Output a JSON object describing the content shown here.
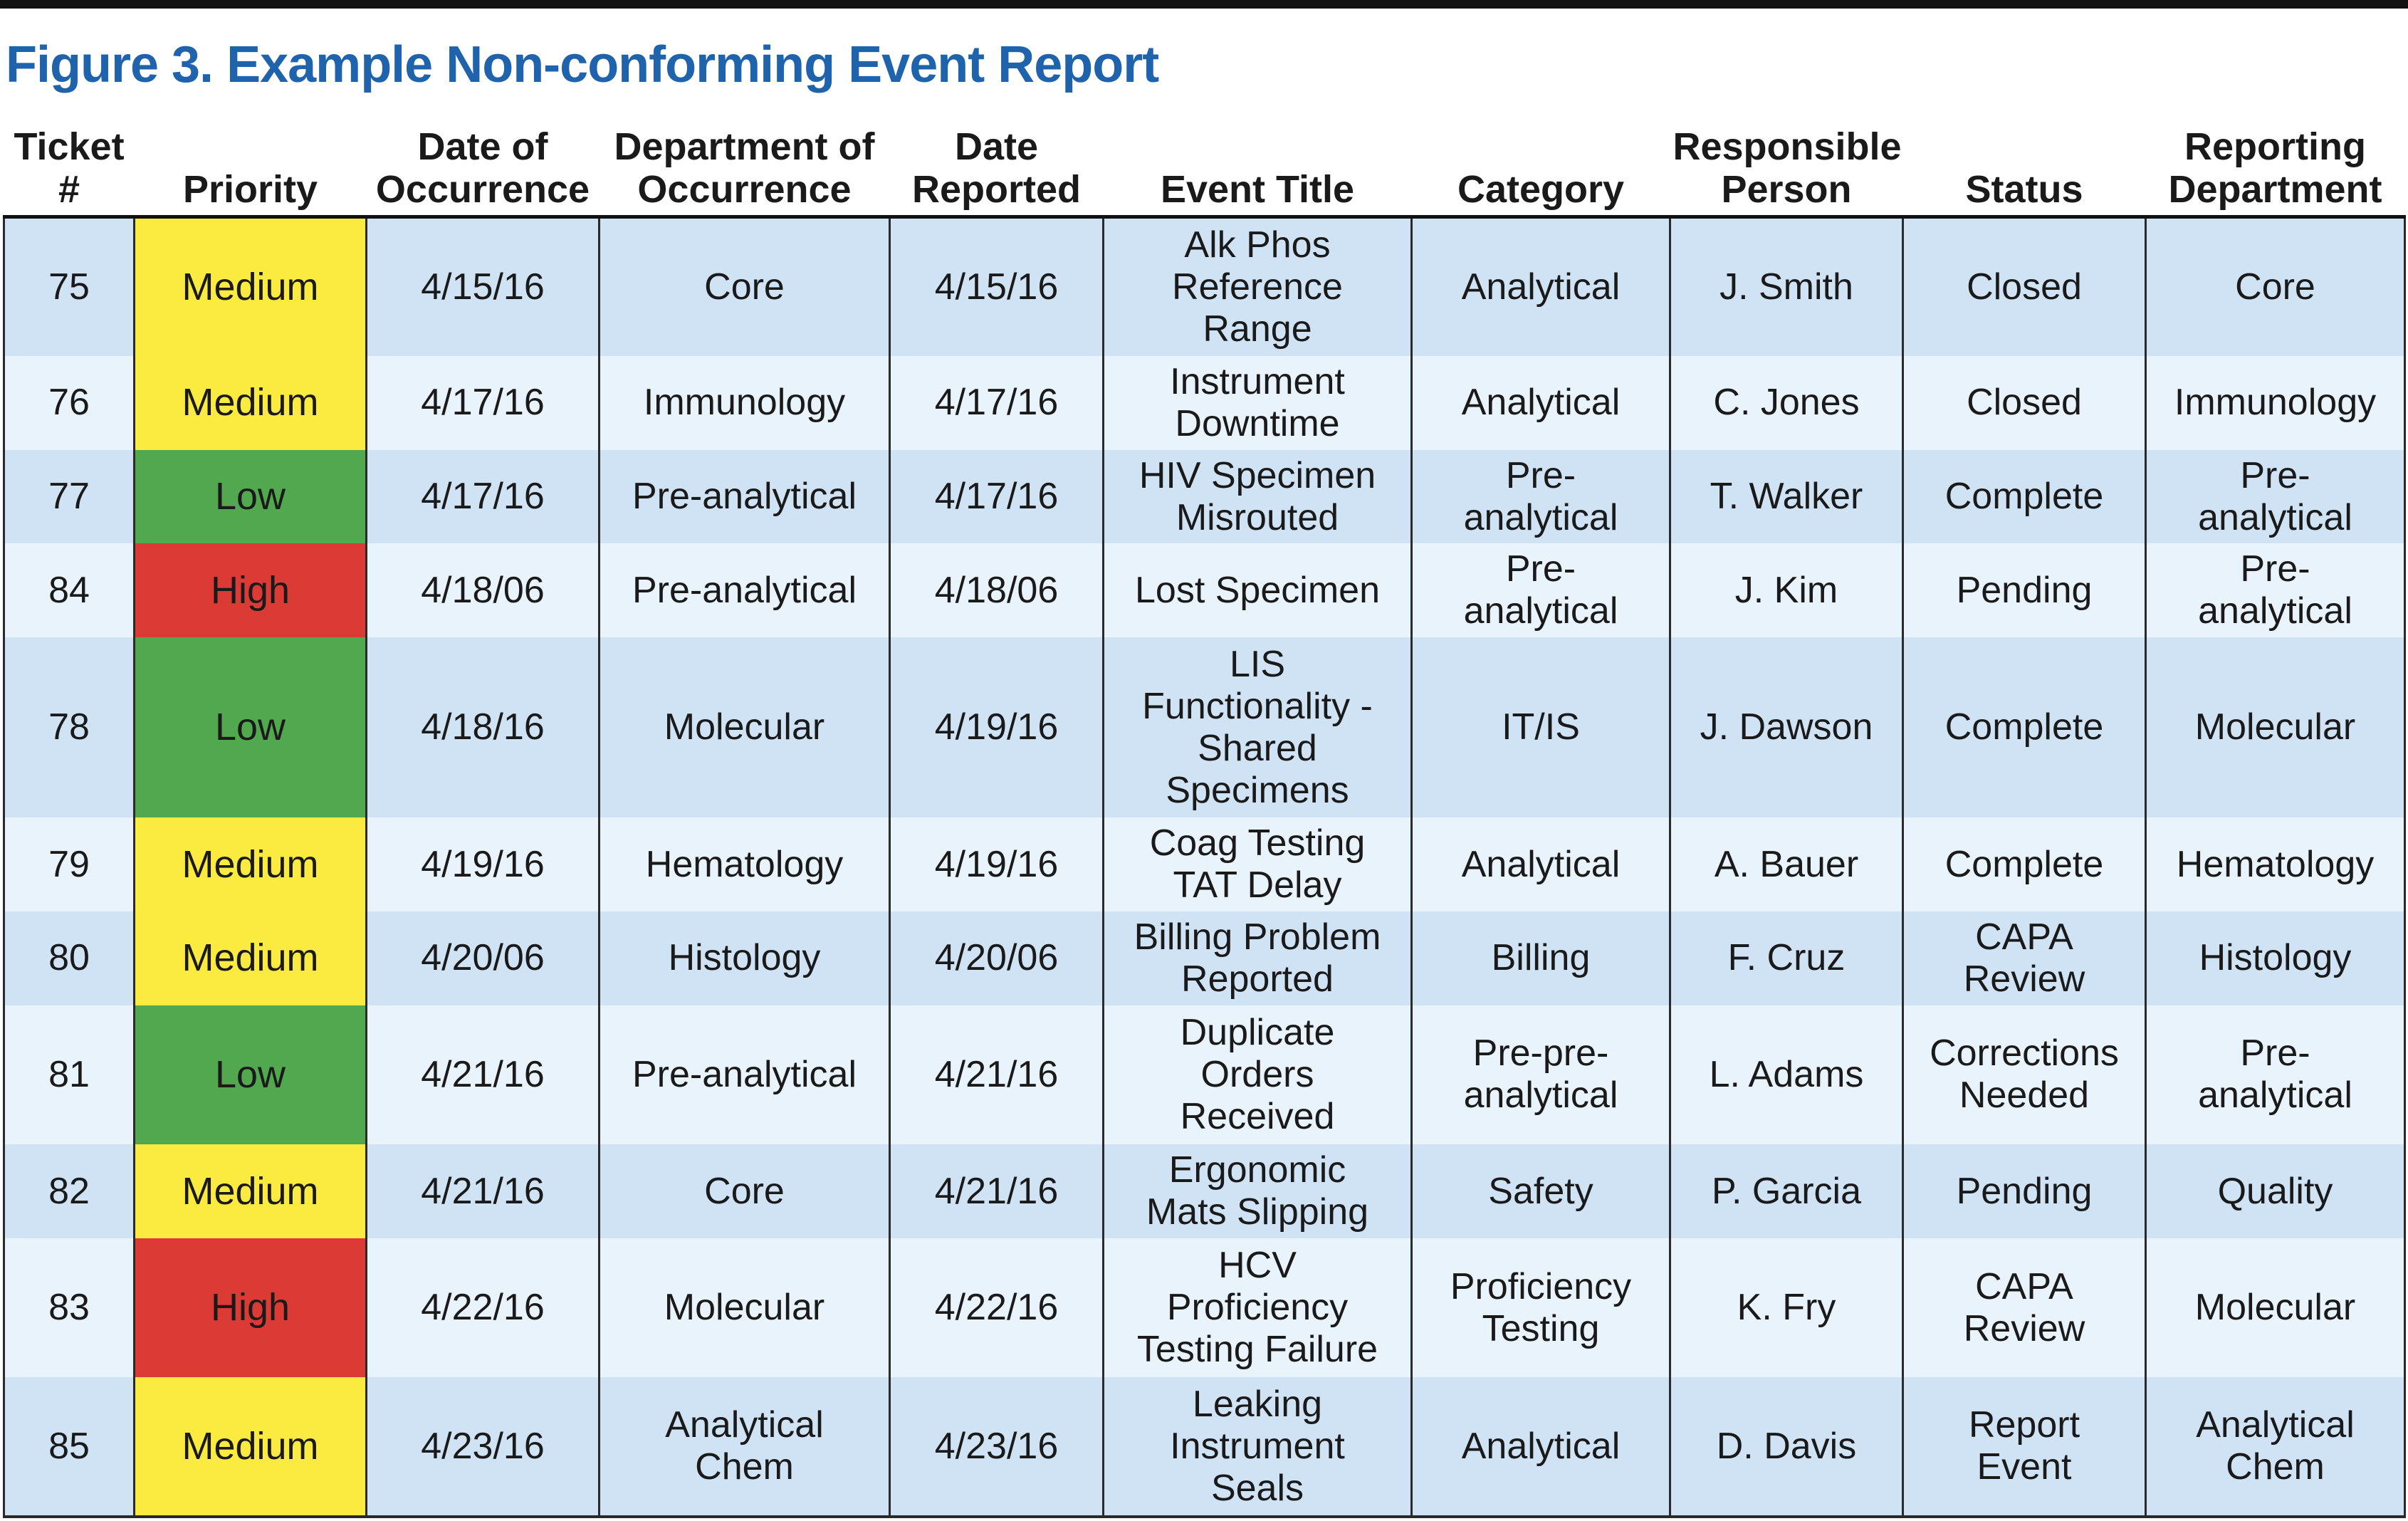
{
  "title": "Figure 3. Example Non-conforming Event Report",
  "colors": {
    "medium": "#fbea3f",
    "low": "#52a84e",
    "high": "#dc3a34",
    "row_dark": "#cfe3f5",
    "row_light": "#e9f3fb",
    "title": "#1f63ad"
  },
  "headers": {
    "ticket": [
      "Ticket",
      "#"
    ],
    "priority": [
      "",
      "Priority"
    ],
    "date_occ": [
      "Date of",
      "Occurrence"
    ],
    "dept_occ": [
      "Department of",
      "Occurrence"
    ],
    "date_rep": [
      "Date",
      "Reported"
    ],
    "event_title": [
      "",
      "Event Title"
    ],
    "category": [
      "",
      "Category"
    ],
    "person": [
      "Responsible",
      "Person"
    ],
    "status": [
      "",
      "Status"
    ],
    "rep_dept": [
      "Reporting",
      "Department"
    ]
  },
  "rows": [
    {
      "ticket": "75",
      "priority": "Medium",
      "date_occ": "4/15/16",
      "dept_occ": [
        "Core"
      ],
      "date_rep": "4/15/16",
      "event_title": [
        "Alk Phos",
        "Reference",
        "Range"
      ],
      "category": [
        "Analytical"
      ],
      "person": "J. Smith",
      "status": [
        "Closed"
      ],
      "rep_dept": [
        "Core"
      ]
    },
    {
      "ticket": "76",
      "priority": "Medium",
      "date_occ": "4/17/16",
      "dept_occ": [
        "Immunology"
      ],
      "date_rep": "4/17/16",
      "event_title": [
        "Instrument",
        "Downtime"
      ],
      "category": [
        "Analytical"
      ],
      "person": "C. Jones",
      "status": [
        "Closed"
      ],
      "rep_dept": [
        "Immunology"
      ]
    },
    {
      "ticket": "77",
      "priority": "Low",
      "date_occ": "4/17/16",
      "dept_occ": [
        "Pre-analytical"
      ],
      "date_rep": "4/17/16",
      "event_title": [
        "HIV Specimen",
        "Misrouted"
      ],
      "category": [
        "Pre-",
        "analytical"
      ],
      "person": "T. Walker",
      "status": [
        "Complete"
      ],
      "rep_dept": [
        "Pre-",
        "analytical"
      ]
    },
    {
      "ticket": "84",
      "priority": "High",
      "date_occ": "4/18/06",
      "dept_occ": [
        "Pre-analytical"
      ],
      "date_rep": "4/18/06",
      "event_title": [
        "Lost Specimen"
      ],
      "category": [
        "Pre-",
        "analytical"
      ],
      "person": "J. Kim",
      "status": [
        "Pending"
      ],
      "rep_dept": [
        "Pre-",
        "analytical"
      ]
    },
    {
      "ticket": "78",
      "priority": "Low",
      "date_occ": "4/18/16",
      "dept_occ": [
        "Molecular"
      ],
      "date_rep": "4/19/16",
      "event_title": [
        "LIS",
        "Functionality -",
        "Shared",
        "Specimens"
      ],
      "category": [
        "IT/IS"
      ],
      "person": "J. Dawson",
      "status": [
        "Complete"
      ],
      "rep_dept": [
        "Molecular"
      ]
    },
    {
      "ticket": "79",
      "priority": "Medium",
      "date_occ": "4/19/16",
      "dept_occ": [
        "Hematology"
      ],
      "date_rep": "4/19/16",
      "event_title": [
        "Coag Testing",
        "TAT Delay"
      ],
      "category": [
        "Analytical"
      ],
      "person": "A. Bauer",
      "status": [
        "Complete"
      ],
      "rep_dept": [
        "Hematology"
      ]
    },
    {
      "ticket": "80",
      "priority": "Medium",
      "date_occ": "4/20/06",
      "dept_occ": [
        "Histology"
      ],
      "date_rep": "4/20/06",
      "event_title": [
        "Billing Problem",
        "Reported"
      ],
      "category": [
        "Billing"
      ],
      "person": "F. Cruz",
      "status": [
        "CAPA",
        "Review"
      ],
      "rep_dept": [
        "Histology"
      ]
    },
    {
      "ticket": "81",
      "priority": "Low",
      "date_occ": "4/21/16",
      "dept_occ": [
        "Pre-analytical"
      ],
      "date_rep": "4/21/16",
      "event_title": [
        "Duplicate",
        "Orders",
        "Received"
      ],
      "category": [
        "Pre-pre-",
        "analytical"
      ],
      "person": "L. Adams",
      "status": [
        "Corrections",
        "Needed"
      ],
      "rep_dept": [
        "Pre-",
        "analytical"
      ]
    },
    {
      "ticket": "82",
      "priority": "Medium",
      "date_occ": "4/21/16",
      "dept_occ": [
        "Core"
      ],
      "date_rep": "4/21/16",
      "event_title": [
        "Ergonomic",
        "Mats Slipping"
      ],
      "category": [
        "Safety"
      ],
      "person": "P. Garcia",
      "status": [
        "Pending"
      ],
      "rep_dept": [
        "Quality"
      ]
    },
    {
      "ticket": "83",
      "priority": "High",
      "date_occ": "4/22/16",
      "dept_occ": [
        "Molecular"
      ],
      "date_rep": "4/22/16",
      "event_title": [
        "HCV",
        "Proficiency",
        "Testing Failure"
      ],
      "category": [
        "Proficiency",
        "Testing"
      ],
      "person": "K. Fry",
      "status": [
        "CAPA",
        "Review"
      ],
      "rep_dept": [
        "Molecular"
      ]
    },
    {
      "ticket": "85",
      "priority": "Medium",
      "date_occ": "4/23/16",
      "dept_occ": [
        "Analytical",
        "Chem"
      ],
      "date_rep": "4/23/16",
      "event_title": [
        "Leaking",
        "Instrument",
        "Seals"
      ],
      "category": [
        "Analytical"
      ],
      "person": "D. Davis",
      "status": [
        "Report",
        "Event"
      ],
      "rep_dept": [
        "Analytical",
        "Chem"
      ]
    }
  ]
}
